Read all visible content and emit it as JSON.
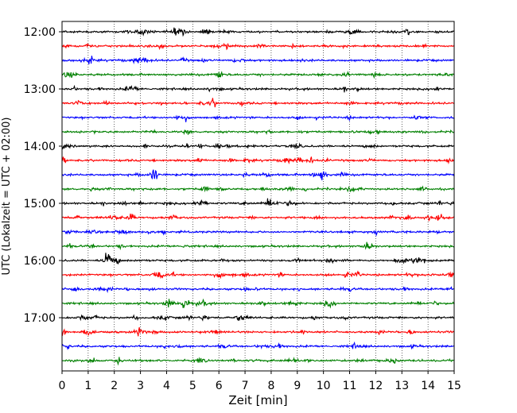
{
  "chart_data": {
    "type": "line",
    "subtype": "helicorder",
    "xlabel": "Zeit  [min]",
    "ylabel": "UTC (Lokalzeit = UTC + 02:00)",
    "xlim": [
      0,
      15
    ],
    "x_ticks": [
      "0",
      "1",
      "2",
      "3",
      "4",
      "5",
      "6",
      "7",
      "8",
      "9",
      "10",
      "11",
      "12",
      "13",
      "14",
      "15"
    ],
    "y_ticks": [
      "12:00",
      "13:00",
      "14:00",
      "15:00",
      "16:00",
      "17:00"
    ],
    "trace_interval_minutes": 15,
    "trace_count": 24,
    "trace_colors": [
      "#000000",
      "#ff0000",
      "#0000ff",
      "#008000"
    ],
    "grid": "x-dotted",
    "events": [
      {
        "row": 0,
        "minute": 4.3,
        "amp": 0.4
      },
      {
        "row": 2,
        "minute": 1.1,
        "amp": 0.5
      },
      {
        "row": 5,
        "minute": 5.8,
        "amp": 0.6
      },
      {
        "row": 10,
        "minute": 10.0,
        "amp": 0.7
      },
      {
        "row": 12,
        "minute": 7.9,
        "amp": 0.8
      },
      {
        "row": 16,
        "minute": 1.75,
        "amp": 1.5
      },
      {
        "row": 17,
        "minute": 3.6,
        "amp": 0.5
      },
      {
        "row": 17,
        "minute": 10.9,
        "amp": 0.5
      }
    ]
  }
}
